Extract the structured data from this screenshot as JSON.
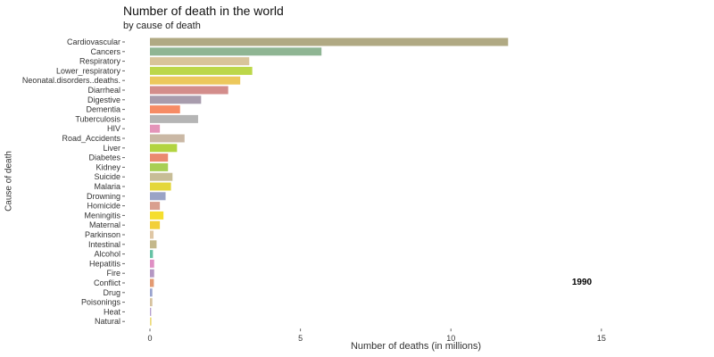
{
  "chart_data": {
    "type": "bar",
    "orientation": "horizontal",
    "title": "Number of death in the world",
    "subtitle": "by cause of death",
    "xlabel": "Number of deaths (in millions)",
    "ylabel": "Cause of death",
    "xlim": [
      0,
      18
    ],
    "xticks": [
      0,
      5,
      10,
      15
    ],
    "grid": false,
    "legend": "none",
    "annotation": "1990",
    "categories": [
      "Cardiovascular",
      "Cancers",
      "Respiratory",
      "Lower_respiratory",
      "Neonatal.disorders..deaths.",
      "Diarrheal",
      "Digestive",
      "Dementia",
      "Tuberculosis",
      "HIV",
      "Road_Accidents",
      "Liver",
      "Diabetes",
      "Kidney",
      "Suicide",
      "Malaria",
      "Drowning",
      "Homicide",
      "Meningitis",
      "Maternal",
      "Parkinson",
      "Intestinal",
      "Alcohol",
      "Hepatitis",
      "Fire",
      "Conflict",
      "Drug",
      "Poisonings",
      "Heat",
      "Natural"
    ],
    "values": [
      11.9,
      5.7,
      3.3,
      3.4,
      3.0,
      2.6,
      1.7,
      1.0,
      1.6,
      0.33,
      1.15,
      0.9,
      0.6,
      0.6,
      0.75,
      0.7,
      0.52,
      0.33,
      0.45,
      0.33,
      0.12,
      0.22,
      0.1,
      0.14,
      0.14,
      0.13,
      0.08,
      0.08,
      0.04,
      0.05
    ],
    "colors": [
      "#b0a983",
      "#8fb593",
      "#d8c49a",
      "#bcd749",
      "#ecc85c",
      "#d38d8b",
      "#a89cad",
      "#f68b65",
      "#b5b5b5",
      "#e494b9",
      "#cab8a5",
      "#b2d441",
      "#ea8a70",
      "#a8cf55",
      "#c7bd97",
      "#e4d73b",
      "#9aa3c6",
      "#d99f8f",
      "#f5de2e",
      "#f2cf38",
      "#dfc7a5",
      "#c4b88b",
      "#66c2a5",
      "#df8fc4",
      "#b497c3",
      "#e39a72",
      "#99a3ce",
      "#d6c29e",
      "#b6a0d0",
      "#eddb7a"
    ]
  }
}
